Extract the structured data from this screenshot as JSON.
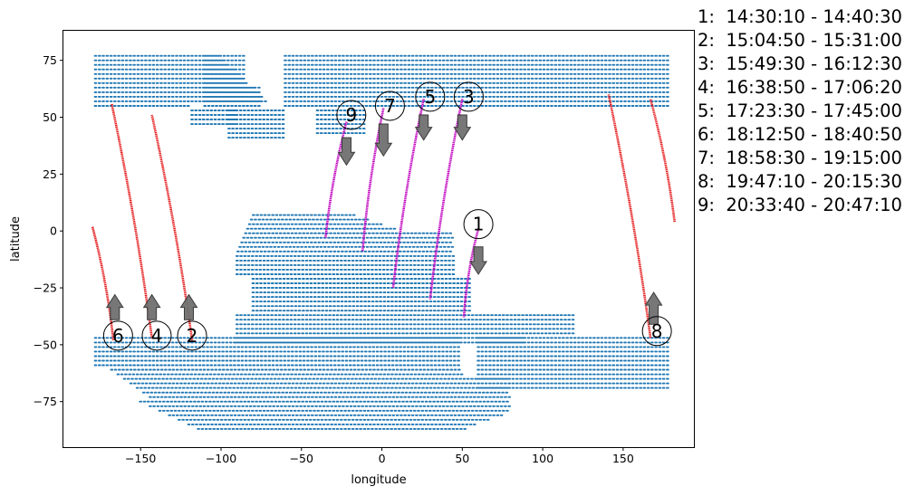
{
  "chart_data": {
    "type": "scatter",
    "xlabel": "longitude",
    "ylabel": "latitude",
    "xlim": [
      -198,
      194
    ],
    "ylim": [
      -95,
      88
    ],
    "xticks": [
      -150,
      -100,
      -50,
      0,
      50,
      100,
      150
    ],
    "yticks": [
      -75,
      -50,
      -25,
      0,
      25,
      50,
      75
    ],
    "grid": false,
    "colors": {
      "land": "#1f77b4",
      "ascending_track": "#e41a1c",
      "descending_track": "#bf00bf",
      "arrow": "#707070"
    },
    "tracks": [
      {
        "label": "1",
        "time": "14:30:10 - 14:40:30",
        "direction": "south",
        "start": [
          60,
          1
        ],
        "end": [
          51,
          -38
        ],
        "arrow_tail": [
          60,
          -7
        ],
        "arrow_head": [
          60,
          -19
        ],
        "marker": [
          60,
          3
        ]
      },
      {
        "label": "2",
        "time": "15:04:50 - 15:31:00",
        "direction": "north",
        "start": [
          -118,
          -48
        ],
        "end": [
          -143,
          51
        ],
        "arrow_tail": [
          -120,
          -39
        ],
        "arrow_head": [
          -120,
          -28
        ],
        "marker": [
          -118,
          -46
        ]
      },
      {
        "label": "3",
        "time": "15:49:30 - 16:12:30",
        "direction": "south",
        "start": [
          50,
          58
        ],
        "end": [
          30,
          -30
        ],
        "arrow_tail": [
          50,
          51
        ],
        "arrow_head": [
          50,
          40
        ],
        "marker": [
          54,
          59
        ]
      },
      {
        "label": "4",
        "time": "16:38:50 - 17:06:20",
        "direction": "north",
        "start": [
          -143,
          -47
        ],
        "end": [
          -168,
          56
        ],
        "arrow_tail": [
          -143,
          -39
        ],
        "arrow_head": [
          -143,
          -28
        ],
        "marker": [
          -140,
          -46
        ]
      },
      {
        "label": "5",
        "time": "17:23:30 - 17:45:00",
        "direction": "south",
        "start": [
          26,
          58
        ],
        "end": [
          7,
          -25
        ],
        "arrow_tail": [
          26,
          51
        ],
        "arrow_head": [
          26,
          40
        ],
        "marker": [
          30,
          59
        ]
      },
      {
        "label": "6",
        "time": "18:12:50 - 18:40:50",
        "direction": "north",
        "start": [
          -167,
          -48
        ],
        "end": [
          -180,
          2
        ],
        "arrow_tail": [
          -166,
          -39
        ],
        "arrow_head": [
          -166,
          -28
        ],
        "marker": [
          -164,
          -46
        ]
      },
      {
        "label": "7",
        "time": "18:58:30 - 19:15:00",
        "direction": "south",
        "start": [
          1,
          54
        ],
        "end": [
          -12,
          -9
        ],
        "arrow_tail": [
          1,
          47
        ],
        "arrow_head": [
          1,
          33
        ],
        "marker": [
          5,
          55
        ]
      },
      {
        "label": "8",
        "time": "19:47:10 - 20:15:30",
        "direction": "north",
        "start": [
          167,
          -47
        ],
        "end": [
          141,
          60
        ],
        "arrow_tail": [
          169,
          -41
        ],
        "arrow_head": [
          169,
          -27
        ],
        "marker": [
          171,
          -44
        ]
      },
      {
        "label": "9",
        "time": "20:33:40 - 20:47:10",
        "direction": "south",
        "start": [
          -22,
          48
        ],
        "end": [
          -35,
          -3
        ],
        "arrow_tail": [
          -22,
          41
        ],
        "arrow_head": [
          -22,
          29
        ],
        "marker": [
          -19,
          51
        ]
      },
      {
        "label": "",
        "time": "",
        "direction": "north",
        "start": [
          182,
          4
        ],
        "end": [
          167,
          58
        ],
        "arrow_tail": null,
        "arrow_head": null,
        "marker": null
      }
    ]
  },
  "legend": [
    "1:  14:30:10 - 14:40:30",
    "2:  15:04:50 - 15:31:00",
    "3:  15:49:30 - 16:12:30",
    "4:  16:38:50 - 17:06:20",
    "5:  17:23:30 - 17:45:00",
    "6:  18:12:50 - 18:40:50",
    "7:  18:58:30 - 19:15:00",
    "8:  19:47:10 - 20:15:30",
    "9:  20:33:40 - 20:47:10"
  ]
}
